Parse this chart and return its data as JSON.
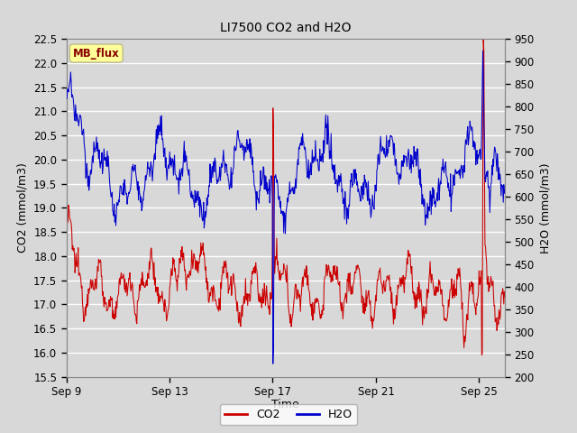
{
  "title": "LI7500 CO2 and H2O",
  "xlabel": "Time",
  "ylabel_left": "CO2 (mmol/m3)",
  "ylabel_right": "H2O (mmol/m3)",
  "x_tick_labels": [
    "Sep 9",
    "Sep 13",
    "Sep 17",
    "Sep 21",
    "Sep 25"
  ],
  "x_tick_positions": [
    0,
    4,
    8,
    12,
    16
  ],
  "ylim_left": [
    15.5,
    22.5
  ],
  "ylim_right": [
    200,
    950
  ],
  "yticks_left": [
    15.5,
    16.0,
    16.5,
    17.0,
    17.5,
    18.0,
    18.5,
    19.0,
    19.5,
    20.0,
    20.5,
    21.0,
    21.5,
    22.0,
    22.5
  ],
  "yticks_right": [
    200,
    250,
    300,
    350,
    400,
    450,
    500,
    550,
    600,
    650,
    700,
    750,
    800,
    850,
    900,
    950
  ],
  "fig_bg_color": "#d8d8d8",
  "plot_bg_color": "#d8d8d8",
  "grid_color": "#ffffff",
  "co2_color": "#cc0000",
  "h2o_color": "#0000cc",
  "tag_text": "MB_flux",
  "tag_text_color": "#880000",
  "tag_bg_color": "#ffff99",
  "tag_edge_color": "#bbbb88",
  "n_days": 17,
  "points_per_day": 48
}
